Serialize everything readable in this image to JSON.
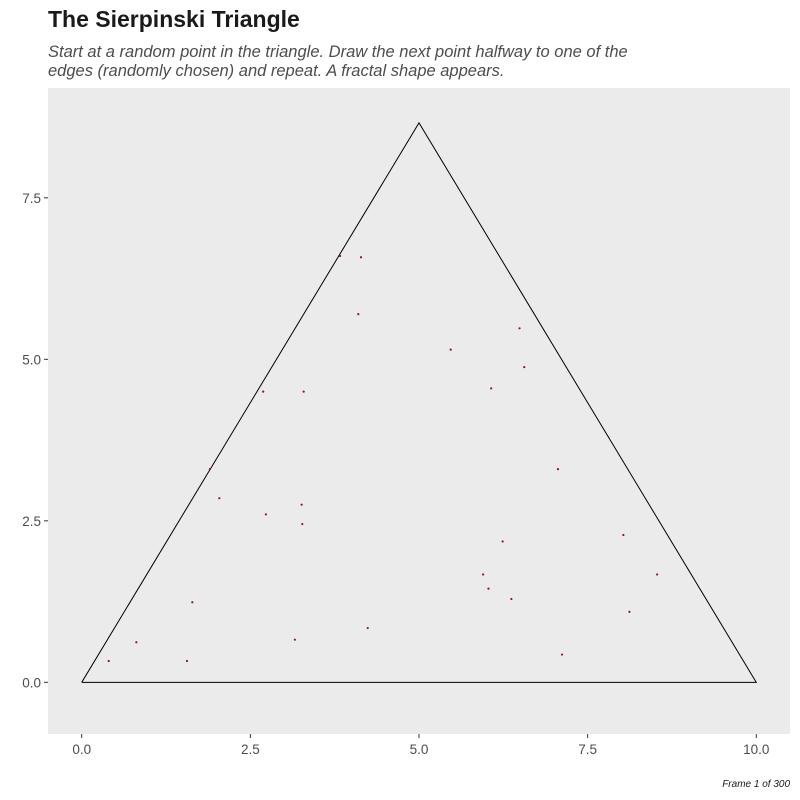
{
  "title": "The Sierpinski Triangle",
  "subtitle": "Start at a random point in the triangle. Draw the next point halfway to one of the edges (randomly chosen) and repeat. A fractal shape appears.",
  "caption": "Frame 1 of 300",
  "colors": {
    "panel_background": "#ebebeb",
    "triangle_stroke": "#000000",
    "point_color": "#8b1a1a",
    "tick_label": "#4d4d4d"
  },
  "chart_data": {
    "type": "scatter",
    "title": "The Sierpinski Triangle",
    "subtitle": "Start at a random point in the triangle. Draw the next point halfway to one of the edges (randomly chosen) and repeat. A fractal shape appears.",
    "xlabel": "",
    "ylabel": "",
    "xlim": [
      -0.5,
      10.5
    ],
    "ylim": [
      -0.8,
      9.2
    ],
    "grid": false,
    "legend": "none",
    "x_ticks": [
      {
        "value": 0,
        "label": "0.0"
      },
      {
        "value": 2.5,
        "label": "2.5"
      },
      {
        "value": 5,
        "label": "5.0"
      },
      {
        "value": 7.5,
        "label": "7.5"
      },
      {
        "value": 10,
        "label": "10.0"
      }
    ],
    "y_ticks": [
      {
        "value": 0,
        "label": "0.0"
      },
      {
        "value": 2.5,
        "label": "2.5"
      },
      {
        "value": 5,
        "label": "5.0"
      },
      {
        "value": 7.5,
        "label": "7.5"
      }
    ],
    "triangle": [
      [
        0,
        0
      ],
      [
        5,
        8.66
      ],
      [
        10,
        0
      ],
      [
        0,
        0
      ]
    ],
    "points": [
      {
        "x": 3.83,
        "y": 6.6
      },
      {
        "x": 4.14,
        "y": 6.58
      },
      {
        "x": 4.1,
        "y": 5.7
      },
      {
        "x": 6.49,
        "y": 5.48
      },
      {
        "x": 5.47,
        "y": 5.15
      },
      {
        "x": 6.56,
        "y": 4.88
      },
      {
        "x": 6.07,
        "y": 4.55
      },
      {
        "x": 2.69,
        "y": 4.5
      },
      {
        "x": 3.29,
        "y": 4.5
      },
      {
        "x": 1.9,
        "y": 3.3
      },
      {
        "x": 7.06,
        "y": 3.3
      },
      {
        "x": 2.04,
        "y": 2.85
      },
      {
        "x": 3.26,
        "y": 2.75
      },
      {
        "x": 2.73,
        "y": 2.6
      },
      {
        "x": 3.27,
        "y": 2.45
      },
      {
        "x": 8.03,
        "y": 2.28
      },
      {
        "x": 6.24,
        "y": 2.18
      },
      {
        "x": 5.95,
        "y": 1.67
      },
      {
        "x": 8.53,
        "y": 1.67
      },
      {
        "x": 6.03,
        "y": 1.45
      },
      {
        "x": 6.37,
        "y": 1.29
      },
      {
        "x": 1.64,
        "y": 1.24
      },
      {
        "x": 8.12,
        "y": 1.09
      },
      {
        "x": 4.24,
        "y": 0.84
      },
      {
        "x": 3.16,
        "y": 0.66
      },
      {
        "x": 0.81,
        "y": 0.62
      },
      {
        "x": 7.12,
        "y": 0.43
      },
      {
        "x": 0.4,
        "y": 0.33
      },
      {
        "x": 1.56,
        "y": 0.33
      }
    ]
  }
}
